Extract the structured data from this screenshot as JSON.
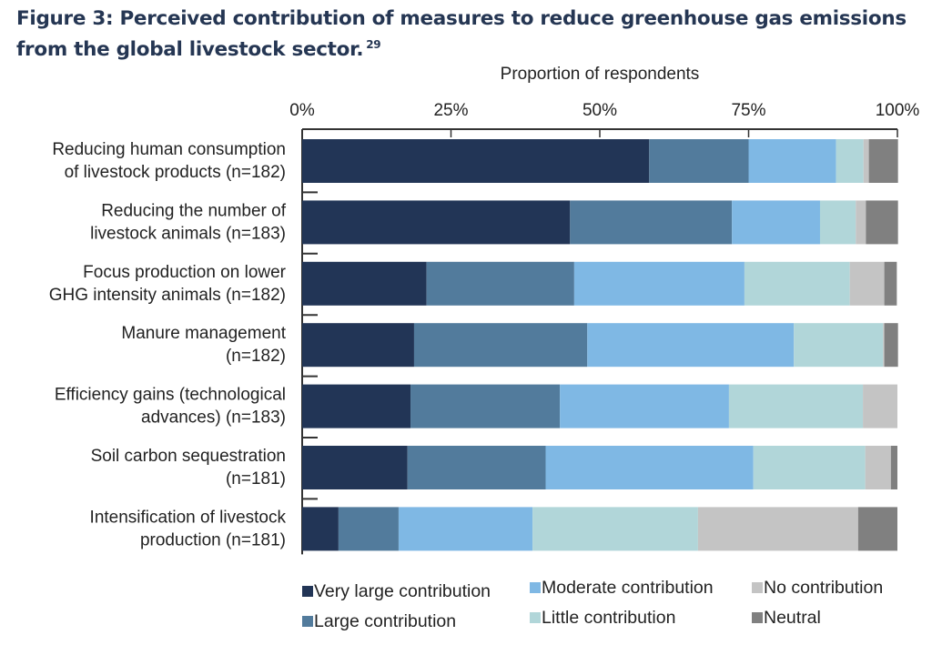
{
  "figure": {
    "title_line1": "Figure 3: Perceived contribution of measures to reduce greenhouse gas emissions",
    "title_line2": "from the global livestock sector.",
    "footnote": "29"
  },
  "chart_data": {
    "type": "bar",
    "orientation": "horizontal",
    "stacked": true,
    "title": "Figure 3: Perceived contribution of measures to reduce greenhouse gas emissions from the global livestock sector.",
    "xlabel": "Proportion of respondents",
    "ylabel": "",
    "xlim": [
      0,
      100
    ],
    "x_ticks": [
      "0%",
      "25%",
      "50%",
      "75%",
      "100%"
    ],
    "x_axis_position": "top",
    "grid": false,
    "legend_position": "bottom",
    "categories": [
      [
        "Reducing human consumption",
        "of livestock products (n=182)"
      ],
      [
        "Reducing the number of",
        "livestock animals (n=183)"
      ],
      [
        "Focus production on lower",
        "GHG intensity animals (n=182)"
      ],
      [
        "Manure management",
        "(n=182)"
      ],
      [
        "Efficiency gains (technological",
        "advances) (n=183)"
      ],
      [
        "Soil carbon sequestration",
        "(n=181)"
      ],
      [
        "Intensification of livestock",
        "production (n=181)"
      ]
    ],
    "series": [
      {
        "name": "Very large contribution",
        "color": "#223556",
        "values": [
          58.3,
          45.0,
          20.9,
          18.8,
          18.2,
          17.7,
          6.1
        ]
      },
      {
        "name": "Large contribution",
        "color": "#527b9c",
        "values": [
          16.7,
          27.2,
          24.8,
          29.1,
          25.1,
          23.2,
          10.1
        ]
      },
      {
        "name": "Moderate contribution",
        "color": "#7fb8e4",
        "values": [
          14.7,
          14.8,
          28.6,
          34.7,
          28.4,
          34.9,
          22.5
        ]
      },
      {
        "name": "Little contribution",
        "color": "#b1d6d9",
        "values": [
          4.6,
          6.0,
          17.7,
          15.0,
          22.5,
          18.8,
          27.8
        ]
      },
      {
        "name": "No contribution",
        "color": "#c4c4c4",
        "values": [
          0.9,
          1.7,
          5.8,
          0.2,
          5.8,
          4.3,
          26.9
        ]
      },
      {
        "name": "Neutral",
        "color": "#808080",
        "values": [
          4.9,
          5.4,
          2.1,
          2.3,
          0.0,
          1.1,
          6.6
        ]
      }
    ],
    "legend_order": [
      "Very large contribution",
      "Large contribution",
      "Moderate contribution",
      "Little contribution",
      "No contribution",
      "Neutral"
    ]
  }
}
